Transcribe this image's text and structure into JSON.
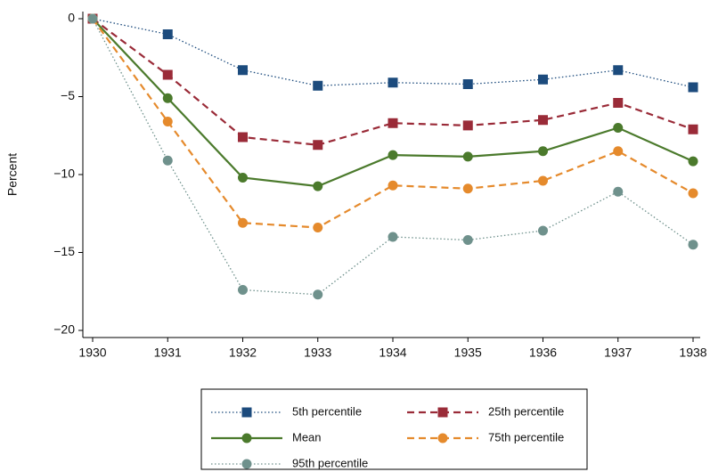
{
  "chart_data": {
    "type": "line",
    "y_label": "Percent",
    "x": [
      1930,
      1931,
      1932,
      1933,
      1934,
      1935,
      1936,
      1937,
      1938
    ],
    "xlim": [
      1930,
      1938
    ],
    "xticks": [
      1930,
      1931,
      1932,
      1933,
      1934,
      1935,
      1936,
      1937,
      1938
    ],
    "ylim": [
      -20,
      0
    ],
    "yticks": [
      {
        "value": -20,
        "label": "−20"
      },
      {
        "value": -15,
        "label": "−15"
      },
      {
        "value": -10,
        "label": "−10"
      },
      {
        "value": -5,
        "label": "−5"
      },
      0
    ],
    "grid": false,
    "legend": "bottom",
    "series": [
      {
        "name": "5th percentile",
        "color": "#1c4b7d",
        "dash": "dotted",
        "marker": "square",
        "values": [
          0,
          -1.0,
          -3.3,
          -4.3,
          -4.1,
          -4.2,
          -3.9,
          -3.3,
          -4.4
        ]
      },
      {
        "name": "25th percentile",
        "color": "#9a2b38",
        "dash": "dashed",
        "marker": "square",
        "values": [
          0,
          -3.6,
          -7.6,
          -8.1,
          -6.7,
          -6.85,
          -6.5,
          -5.4,
          -7.1
        ]
      },
      {
        "name": "Mean",
        "color": "#4b7a2c",
        "dash": "solid",
        "marker": "circle",
        "values": [
          0,
          -5.1,
          -10.2,
          -10.75,
          -8.75,
          -8.85,
          -8.5,
          -7.0,
          -9.15
        ]
      },
      {
        "name": "75th percentile",
        "color": "#e58a2c",
        "dash": "dashed",
        "marker": "circle",
        "values": [
          0,
          -6.6,
          -13.1,
          -13.4,
          -10.7,
          -10.9,
          -10.4,
          -8.5,
          -11.2
        ]
      },
      {
        "name": "95th percentile",
        "color": "#6f918c",
        "dash": "dotted",
        "marker": "circle",
        "values": [
          0,
          -9.1,
          -17.4,
          -17.7,
          -14.0,
          -14.2,
          -13.6,
          -11.1,
          -14.5
        ]
      }
    ]
  }
}
